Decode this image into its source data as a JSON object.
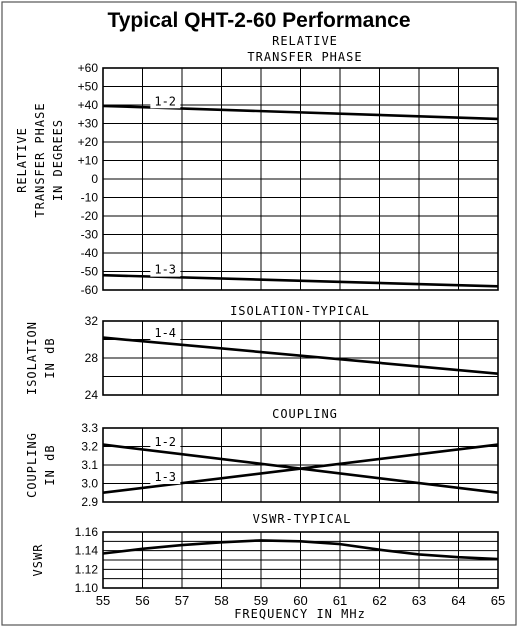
{
  "title": "Typical QHT-2-60 Performance",
  "x_axis": {
    "label": "FREQUENCY IN MHz",
    "min": 55,
    "max": 65,
    "ticks": [
      "55",
      "56",
      "57",
      "58",
      "59",
      "60",
      "61",
      "62",
      "63",
      "64",
      "65"
    ]
  },
  "chart_data": [
    {
      "type": "line",
      "title_lines": [
        "RELATIVE",
        "TRANSFER PHASE"
      ],
      "ylabel_lines": [
        "RELATIVE",
        "TRANSFER PHASE",
        "IN DEGREES"
      ],
      "ylim": [
        -60,
        60
      ],
      "yticks": [
        "+60",
        "+50",
        "+40",
        "+30",
        "+20",
        "+10",
        "0",
        "-10",
        "-20",
        "-30",
        "-40",
        "-50",
        "-60"
      ],
      "ytick_values": [
        60,
        50,
        40,
        30,
        20,
        10,
        0,
        -10,
        -20,
        -30,
        -40,
        -50,
        -60
      ],
      "grid": true,
      "series": [
        {
          "name": "1-2",
          "x": [
            55,
            65
          ],
          "y": [
            39.5,
            32.5
          ],
          "label_x": 56.3,
          "label_y": 42
        },
        {
          "name": "1-3",
          "x": [
            55,
            65
          ],
          "y": [
            -52,
            -58
          ],
          "label_x": 56.3,
          "label_y": -49
        }
      ]
    },
    {
      "type": "line",
      "title_lines": [
        "ISOLATION-TYPICAL"
      ],
      "ylabel_lines": [
        "ISOLATION",
        "IN dB"
      ],
      "ylim": [
        24,
        32
      ],
      "yticks": [
        "32",
        "28",
        "24"
      ],
      "ytick_values": [
        32,
        28,
        24
      ],
      "gridlines": [
        32,
        30,
        28,
        26,
        24
      ],
      "grid": true,
      "series": [
        {
          "name": "1-4",
          "x": [
            55,
            65
          ],
          "y": [
            30.2,
            26.3
          ],
          "label_x": 56.3,
          "label_y": 30.7
        }
      ]
    },
    {
      "type": "line",
      "title_lines": [
        "COUPLING"
      ],
      "ylabel_lines": [
        "COUPLING",
        "IN dB"
      ],
      "ylim": [
        2.9,
        3.3
      ],
      "yticks": [
        "3.3",
        "3.2",
        "3.1",
        "3.0",
        "2.9"
      ],
      "ytick_values": [
        3.3,
        3.2,
        3.1,
        3.0,
        2.9
      ],
      "grid": true,
      "series": [
        {
          "name": "1-2",
          "x": [
            55,
            65
          ],
          "y": [
            3.21,
            2.95
          ],
          "label_x": 56.3,
          "label_y": 3.225
        },
        {
          "name": "1-3",
          "x": [
            55,
            65
          ],
          "y": [
            2.95,
            3.21
          ],
          "label_x": 56.3,
          "label_y": 3.035
        }
      ]
    },
    {
      "type": "line",
      "title_lines": [
        "VSWR-TYPICAL"
      ],
      "ylabel_lines": [
        "VSWR"
      ],
      "ylim": [
        1.1,
        1.16
      ],
      "yticks": [
        "1.16",
        "1.14",
        "1.12",
        "1.10"
      ],
      "ytick_values": [
        1.16,
        1.14,
        1.12,
        1.1
      ],
      "gridlines": [
        1.16,
        1.15,
        1.14,
        1.13,
        1.12,
        1.11,
        1.1
      ],
      "grid": true,
      "series": [
        {
          "name": "",
          "x": [
            55,
            56,
            57,
            58,
            59,
            60,
            61,
            62,
            63,
            64,
            65
          ],
          "y": [
            1.137,
            1.142,
            1.146,
            1.149,
            1.151,
            1.15,
            1.147,
            1.141,
            1.136,
            1.133,
            1.131
          ]
        }
      ]
    }
  ]
}
